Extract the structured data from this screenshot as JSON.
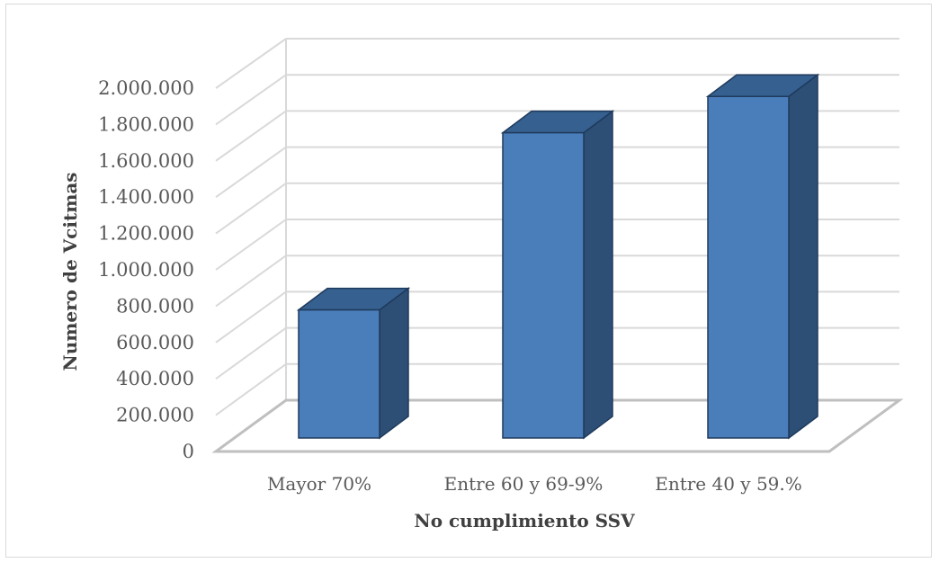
{
  "chart_data": {
    "type": "bar",
    "title": "",
    "xlabel": "No cumplimiento SSV",
    "ylabel": "Numero de Vcitmas",
    "categories": [
      "Mayor 70%",
      "Entre 60 y 69-9%",
      "Entre 40 y 59.%"
    ],
    "values": [
      705000,
      1680000,
      1880000
    ],
    "ylim": [
      0,
      2000000
    ],
    "yticks": [
      {
        "value": 0,
        "label": "0"
      },
      {
        "value": 200000,
        "label": "200.000"
      },
      {
        "value": 400000,
        "label": "400.000"
      },
      {
        "value": 600000,
        "label": "600.000"
      },
      {
        "value": 800000,
        "label": "800.000"
      },
      {
        "value": 1000000,
        "label": "1.000.000"
      },
      {
        "value": 1200000,
        "label": "1.200.000"
      },
      {
        "value": 1400000,
        "label": "1.400.000"
      },
      {
        "value": 1600000,
        "label": "1.600.000"
      },
      {
        "value": 1800000,
        "label": "1.800.000"
      },
      {
        "value": 2000000,
        "label": "2.000.000"
      }
    ],
    "grid": true,
    "style": "3d-column",
    "colors": {
      "front": "#4a7ebb",
      "side": "#2d4f76",
      "top": "#35608f",
      "edge": "#1f3a5c",
      "grid": "#d9d9d9"
    }
  }
}
